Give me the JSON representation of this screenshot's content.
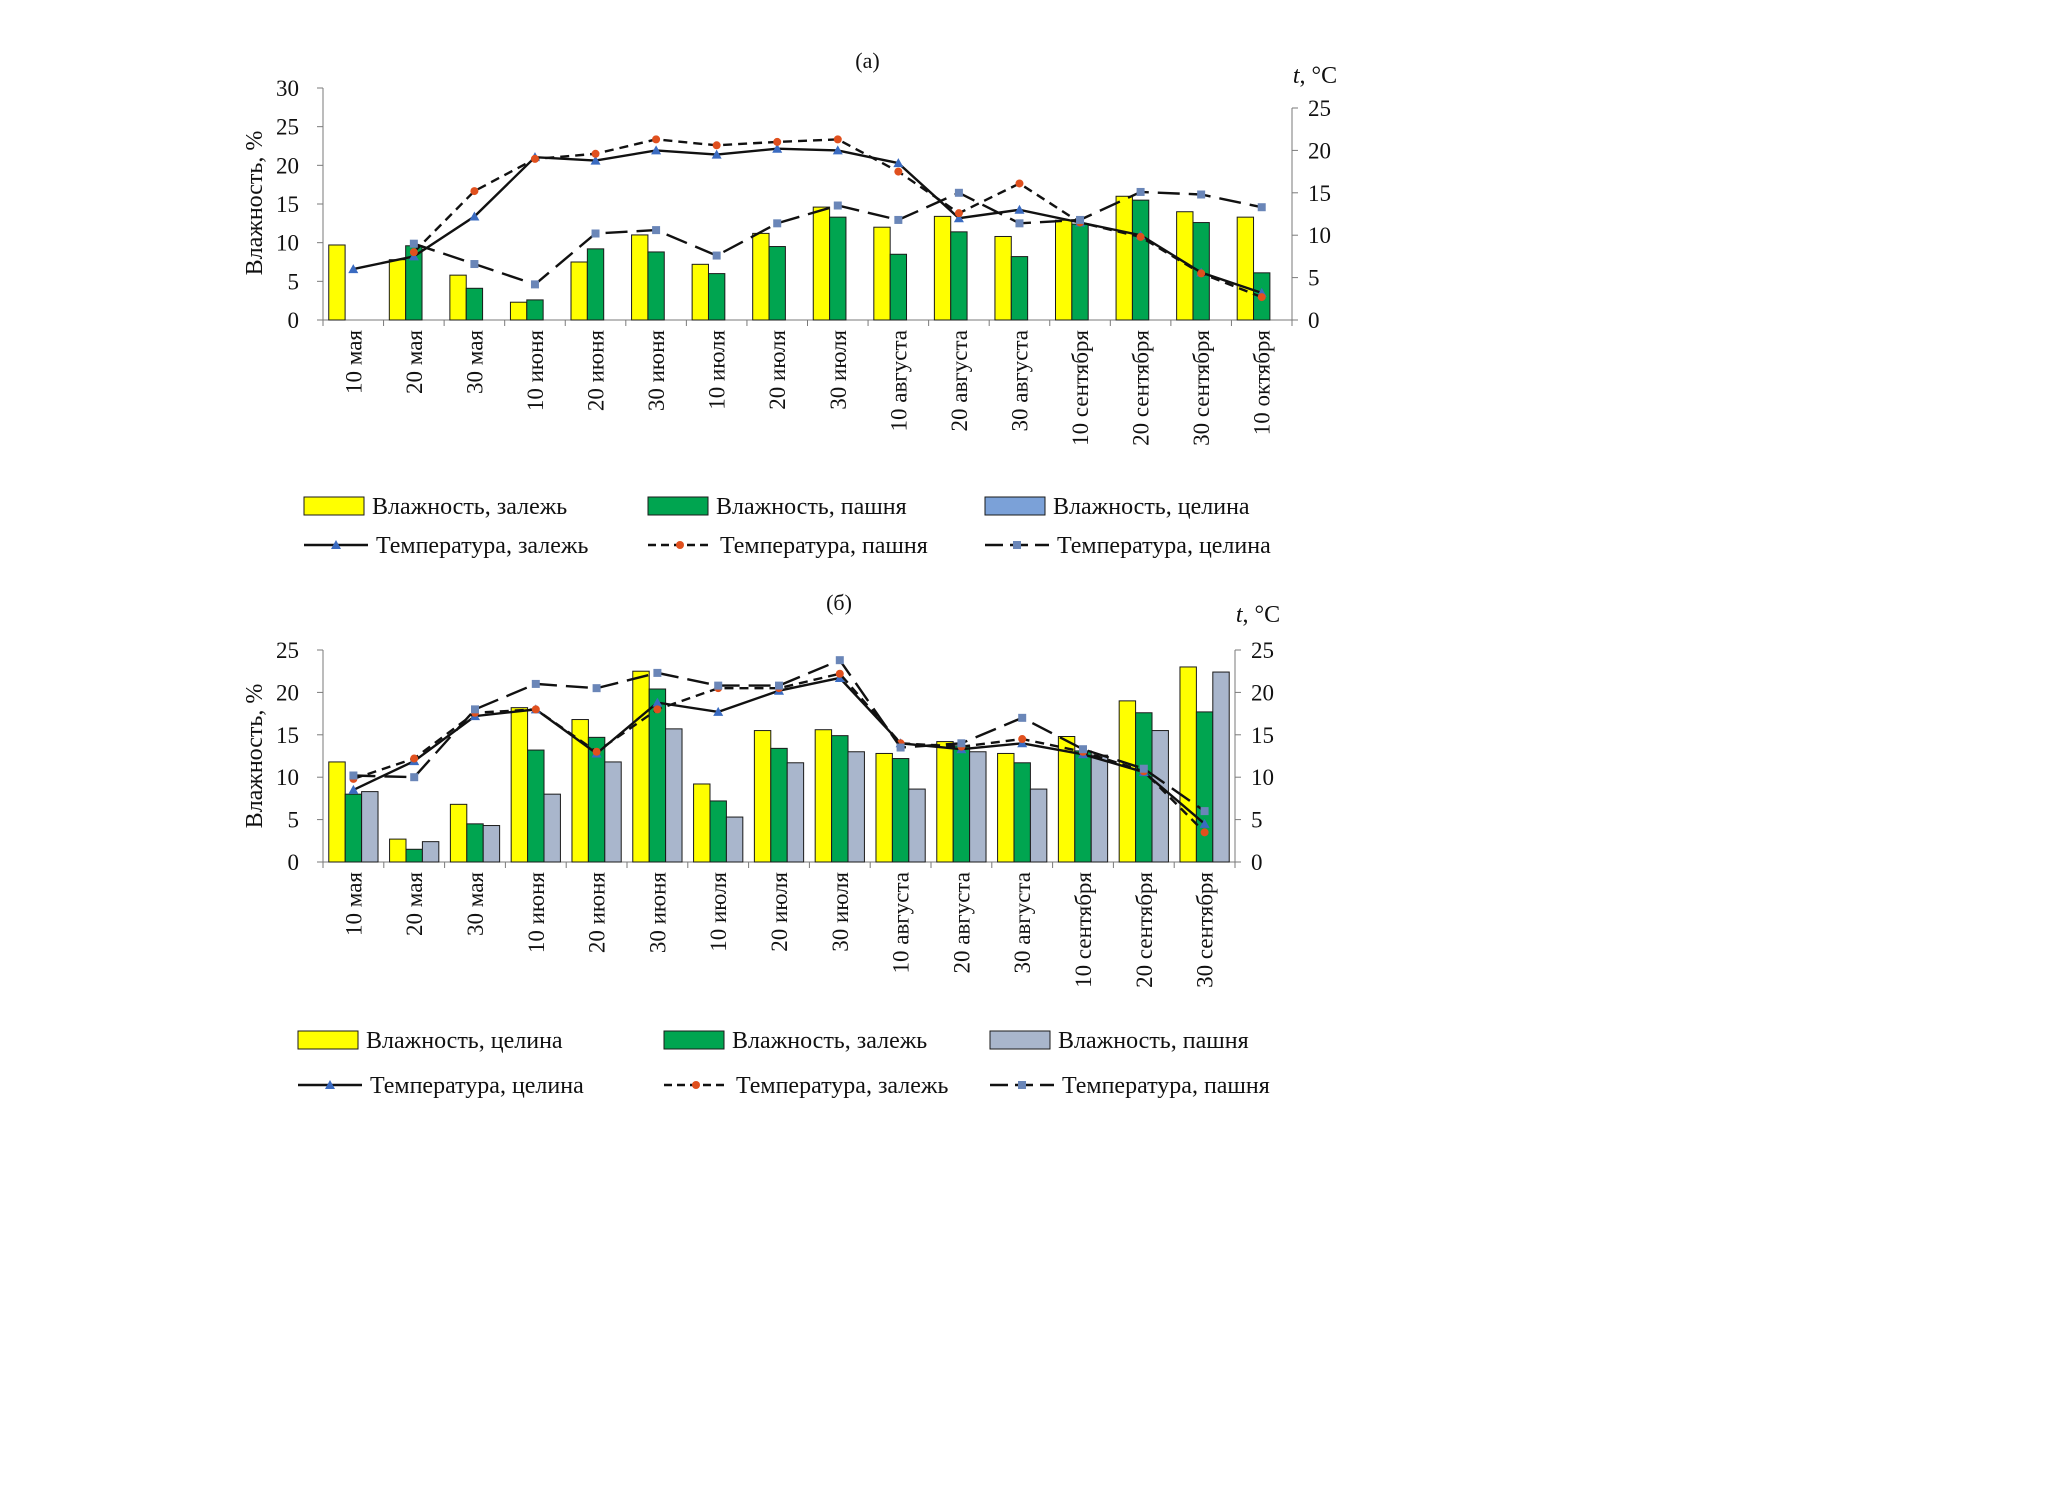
{
  "chart_data": [
    {
      "type": "bar",
      "title": "(а)",
      "ylabel": "Влажность, %",
      "y2label_italic": "t",
      "y2label_rest": ", °C",
      "ylim": [
        0,
        30
      ],
      "yticks": [
        0,
        5,
        10,
        15,
        20,
        25,
        30
      ],
      "y2lim": [
        0,
        25
      ],
      "y2ticks": [
        0,
        5,
        10,
        15,
        20,
        25
      ],
      "grid": false,
      "legend_position": "bottom",
      "categories": [
        "10 мая",
        "20 мая",
        "30 мая",
        "10 июня",
        "20 июня",
        "30 июня",
        "10 июля",
        "20 июля",
        "30 июля",
        "10 августа",
        "20 августа",
        "30 августа",
        "10 сентября",
        "20 сентября",
        "30 сентября",
        "10 октября"
      ],
      "bar_series": [
        {
          "name": "Влажность, залежь",
          "color": "#ffff00",
          "values": [
            9.7,
            7.8,
            5.8,
            2.3,
            7.5,
            11.0,
            7.2,
            11.2,
            14.6,
            12.0,
            13.4,
            10.8,
            12.9,
            16.0,
            14.0,
            13.3
          ]
        },
        {
          "name": "Влажность, пашня",
          "color": "#00a550",
          "values": [
            null,
            9.6,
            4.1,
            2.6,
            9.2,
            8.8,
            6.0,
            9.5,
            13.3,
            8.5,
            11.4,
            8.2,
            12.4,
            15.5,
            12.6,
            6.1
          ]
        },
        {
          "name": "Влажность, целина",
          "color": "#7ba1d8",
          "values": [
            null,
            null,
            null,
            null,
            null,
            null,
            null,
            null,
            null,
            null,
            null,
            null,
            null,
            null,
            null,
            null
          ]
        }
      ],
      "line_series": [
        {
          "name": "Температура, залежь",
          "style": "solid",
          "marker": "triangle",
          "marker_color": "#3a6bc1",
          "values": [
            6.0,
            7.5,
            12.2,
            19.2,
            18.8,
            20.0,
            19.5,
            20.2,
            20.0,
            18.5,
            12.0,
            13.0,
            11.5,
            10.0,
            5.6,
            3.2
          ]
        },
        {
          "name": "Температура, пашня",
          "style": "dashed",
          "marker": "circle",
          "marker_color": "#e0501e",
          "values": [
            null,
            8.0,
            15.2,
            19.0,
            19.6,
            21.3,
            20.6,
            21.0,
            21.3,
            17.5,
            12.6,
            16.1,
            11.5,
            9.8,
            5.5,
            2.7
          ]
        },
        {
          "name": "Температура, целина",
          "style": "longdash",
          "marker": "square",
          "marker_color": "#6a86b8",
          "values": [
            null,
            9.0,
            6.6,
            4.2,
            10.2,
            10.6,
            7.6,
            11.4,
            13.5,
            11.8,
            15.0,
            11.4,
            11.8,
            15.1,
            14.8,
            13.3
          ]
        }
      ]
    },
    {
      "type": "bar",
      "title": "(б)",
      "ylabel": "Влажность, %",
      "y2label_italic": "t",
      "y2label_rest": ", °C",
      "ylim": [
        0,
        25
      ],
      "yticks": [
        0,
        5,
        10,
        15,
        20,
        25
      ],
      "y2lim": [
        0,
        25
      ],
      "y2ticks": [
        0,
        5,
        10,
        15,
        20,
        25
      ],
      "grid": false,
      "legend_position": "bottom",
      "categories": [
        "10 мая",
        "20 мая",
        "30 мая",
        "10 июня",
        "20 июня",
        "30 июня",
        "10 июля",
        "20 июля",
        "30 июля",
        "10 августа",
        "20 августа",
        "30 августа",
        "10 сентября",
        "20 сентября",
        "30 сентября"
      ],
      "bar_series": [
        {
          "name": "Влажность, целина",
          "color": "#ffff00",
          "values": [
            11.8,
            2.7,
            6.8,
            18.2,
            16.8,
            22.5,
            9.2,
            15.5,
            15.6,
            12.8,
            14.2,
            12.8,
            14.8,
            19.0,
            23.0
          ]
        },
        {
          "name": "Влажность, залежь",
          "color": "#00a550",
          "values": [
            8.0,
            1.5,
            4.5,
            13.2,
            14.7,
            20.4,
            7.2,
            13.4,
            14.9,
            12.2,
            13.7,
            11.7,
            13.1,
            17.6,
            17.7
          ]
        },
        {
          "name": "Влажность, пашня",
          "color": "#a9b6cc",
          "values": [
            8.3,
            2.4,
            4.3,
            8.0,
            11.8,
            15.7,
            5.3,
            11.7,
            13.0,
            8.6,
            13.0,
            8.6,
            12.6,
            15.5,
            22.4
          ]
        }
      ],
      "line_series": [
        {
          "name": "Температура, целина",
          "style": "solid",
          "marker": "triangle",
          "marker_color": "#3a6bc1",
          "values": [
            8.5,
            11.9,
            17.2,
            18.0,
            12.8,
            18.8,
            17.7,
            20.2,
            21.7,
            14.0,
            13.3,
            14.0,
            12.7,
            10.6,
            4.5
          ]
        },
        {
          "name": "Температура, залежь",
          "style": "dashed",
          "marker": "circle",
          "marker_color": "#e0501e",
          "values": [
            9.8,
            12.2,
            17.6,
            18.0,
            13.0,
            18.0,
            20.5,
            20.5,
            22.2,
            14.0,
            13.6,
            14.5,
            13.0,
            10.7,
            3.5
          ]
        },
        {
          "name": "Температура, пашня",
          "style": "longdash",
          "marker": "square",
          "marker_color": "#6a86b8",
          "values": [
            10.2,
            10.0,
            18.0,
            21.0,
            20.5,
            22.3,
            20.8,
            20.8,
            23.8,
            13.5,
            14.0,
            17.0,
            13.3,
            11.0,
            6.0
          ]
        }
      ]
    }
  ]
}
